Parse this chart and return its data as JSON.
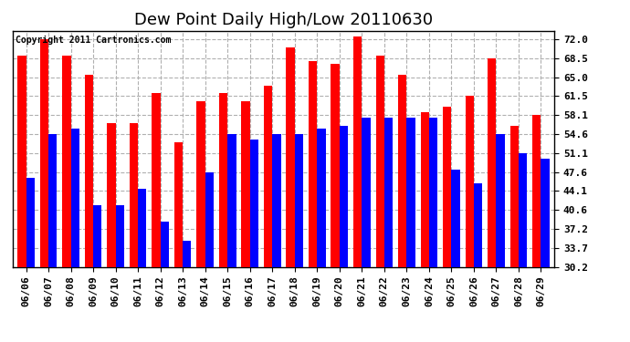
{
  "title": "Dew Point Daily High/Low 20110630",
  "copyright": "Copyright 2011 Cartronics.com",
  "dates": [
    "06/06",
    "06/07",
    "06/08",
    "06/09",
    "06/10",
    "06/11",
    "06/12",
    "06/13",
    "06/14",
    "06/15",
    "06/16",
    "06/17",
    "06/18",
    "06/19",
    "06/20",
    "06/21",
    "06/22",
    "06/23",
    "06/24",
    "06/25",
    "06/26",
    "06/27",
    "06/28",
    "06/29"
  ],
  "highs": [
    69.0,
    72.0,
    69.0,
    65.5,
    56.5,
    56.5,
    62.0,
    53.0,
    60.5,
    62.0,
    60.5,
    63.5,
    70.5,
    68.0,
    67.5,
    72.5,
    69.0,
    65.5,
    58.5,
    59.5,
    61.5,
    68.5,
    56.0,
    58.0
  ],
  "lows": [
    46.5,
    54.5,
    55.5,
    41.5,
    41.5,
    44.5,
    38.5,
    35.0,
    47.5,
    54.5,
    53.5,
    54.5,
    54.5,
    55.5,
    56.0,
    57.5,
    57.5,
    57.5,
    57.5,
    48.0,
    45.5,
    54.5,
    51.0,
    50.0
  ],
  "high_color": "#ff0000",
  "low_color": "#0000ff",
  "bg_color": "#ffffff",
  "grid_color": "#b0b0b0",
  "yticks": [
    30.2,
    33.7,
    37.2,
    40.6,
    44.1,
    47.6,
    51.1,
    54.6,
    58.1,
    61.5,
    65.0,
    68.5,
    72.0
  ],
  "ymin": 30.2,
  "ymax": 73.5,
  "bar_width": 0.38,
  "title_fontsize": 13,
  "tick_fontsize": 8,
  "copyright_fontsize": 7
}
